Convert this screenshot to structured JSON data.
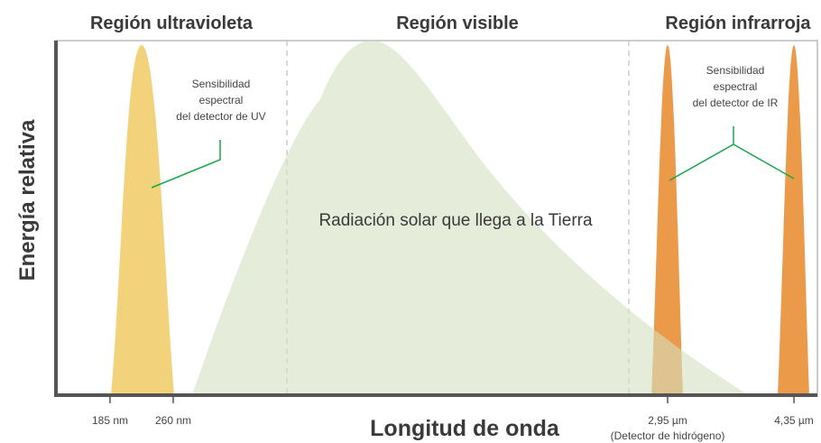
{
  "regions": [
    "Región ultravioleta",
    "Región visible",
    "Región infrarroja"
  ],
  "annotations": {
    "uv_detector": [
      "Sensibilidad",
      "espectral",
      "del detector de UV"
    ],
    "ir_detector": [
      "Sensibilidad",
      "espectral",
      "del detector de IR"
    ],
    "solar": "Radiación solar que llega a la Tierra"
  },
  "axes": {
    "y_label": "Energía relativa",
    "x_label": "Longitud de onda",
    "x_ticks": [
      "185 nm",
      "260 nm",
      "2,95 µm",
      "4,35 µm"
    ],
    "x_tick_note": "(Detector de hidrógeno)"
  }
}
